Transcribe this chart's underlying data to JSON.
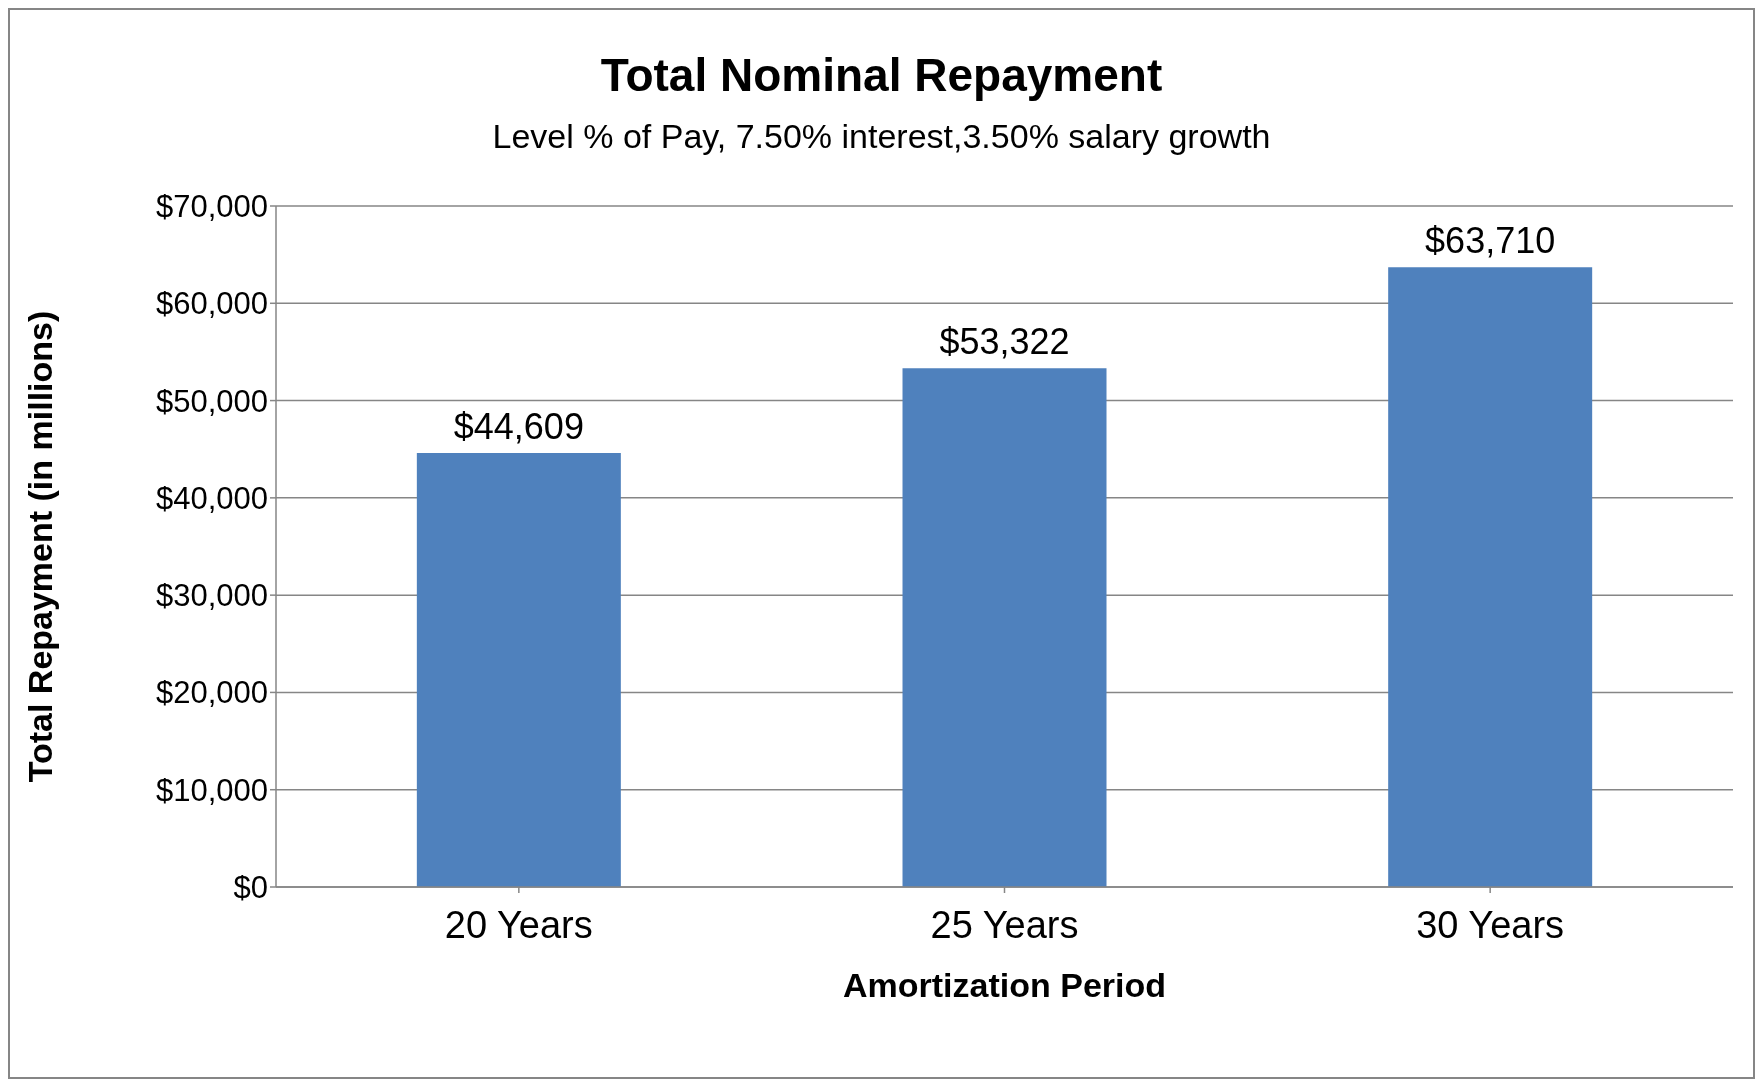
{
  "chart_data": {
    "type": "bar",
    "title": "Total Nominal Repayment",
    "subtitle": "Level % of Pay, 7.50% interest,3.50% salary growth",
    "xlabel": "Amortization Period",
    "ylabel": "Total Repayment (in millions)",
    "categories": [
      "20 Years",
      "25 Years",
      "30 Years"
    ],
    "values": [
      44609,
      53322,
      63710
    ],
    "value_labels": [
      "$44,609",
      "$53,322",
      "$63,710"
    ],
    "color": "#4f81bd",
    "ylim": [
      0,
      70000
    ],
    "yticks": [
      {
        "value": 0,
        "label": "$0"
      },
      {
        "value": 10000,
        "label": "$10,000"
      },
      {
        "value": 20000,
        "label": "$20,000"
      },
      {
        "value": 30000,
        "label": "$30,000"
      },
      {
        "value": 40000,
        "label": "$40,000"
      },
      {
        "value": 50000,
        "label": "$50,000"
      },
      {
        "value": 60000,
        "label": "$60,000"
      },
      {
        "value": 70000,
        "label": "$70,000"
      }
    ],
    "grid": "y",
    "legend": false
  }
}
